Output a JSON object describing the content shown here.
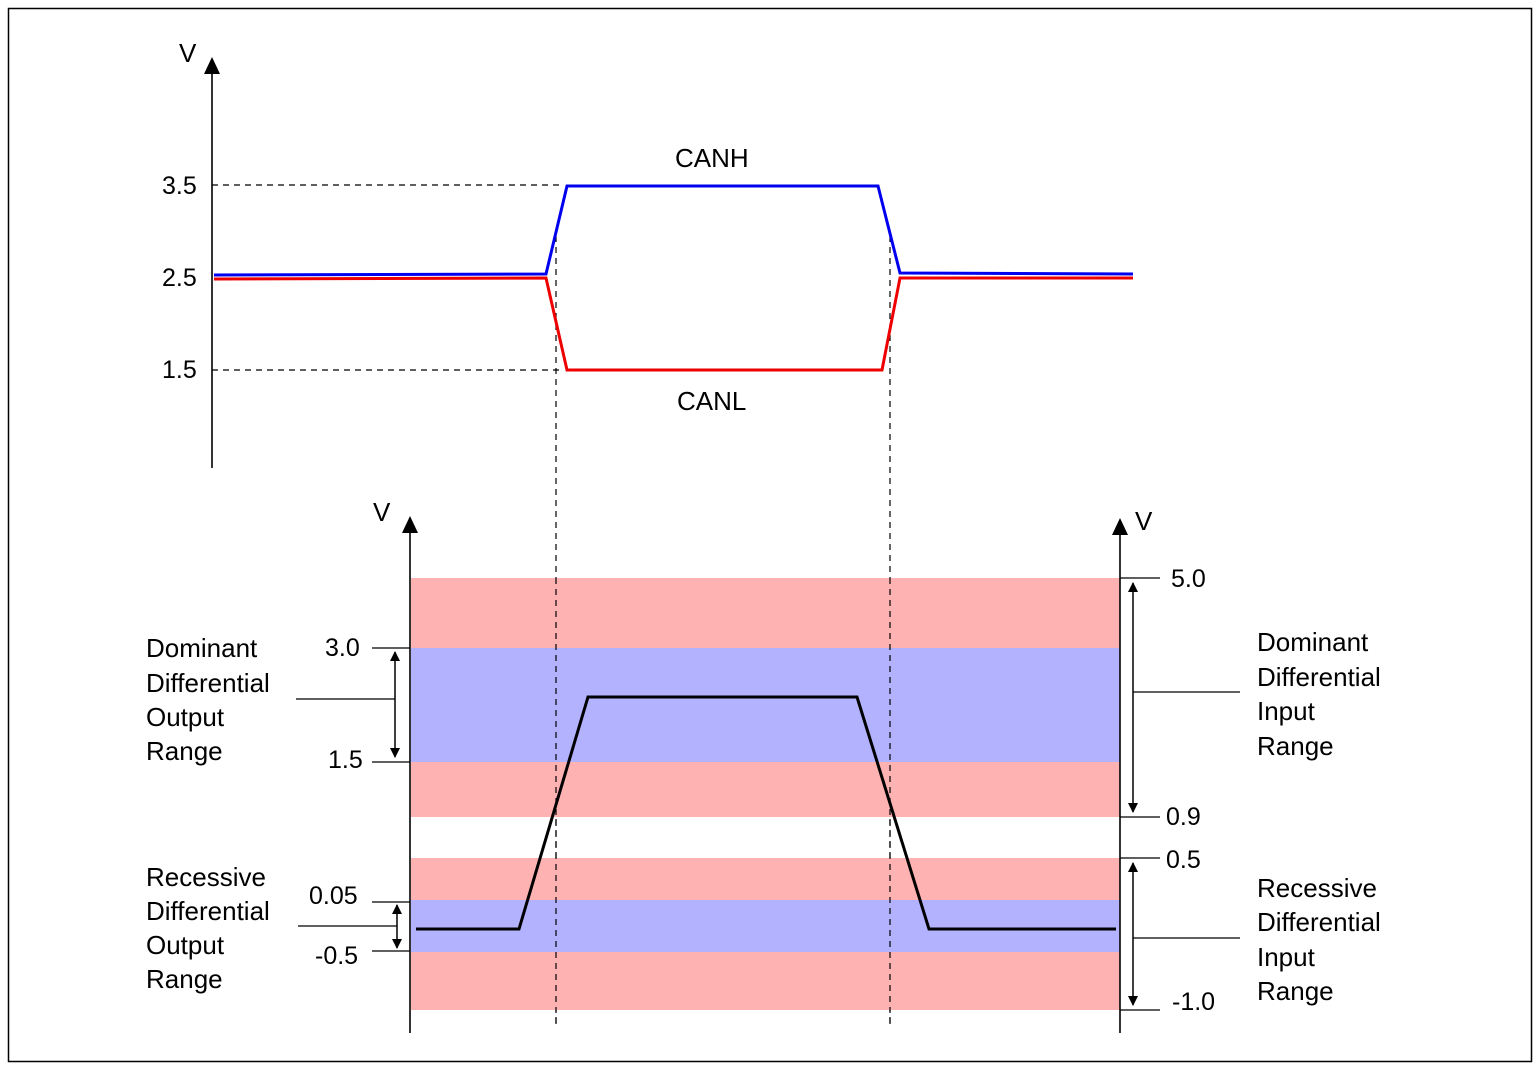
{
  "top_chart": {
    "axis_label": "V",
    "ticks": [
      "3.5",
      "2.5",
      "1.5"
    ],
    "canh_label": "CANH",
    "canl_label": "CANL",
    "colors": {
      "canh": "#0000ee",
      "canl": "#ee0000",
      "axis": "#000000"
    }
  },
  "bottom_chart": {
    "left_axis_label": "V",
    "right_axis_label": "V",
    "left_ticks": [
      "3.0",
      "1.5",
      "0.05",
      "-0.5"
    ],
    "right_ticks": [
      "5.0",
      "0.9",
      "0.5",
      "-1.0"
    ],
    "left_labels": {
      "dominant": [
        "Dominant",
        "Differential",
        "Output",
        "Range"
      ],
      "recessive": [
        "Recessive",
        "Differential",
        "Output",
        "Range"
      ]
    },
    "right_labels": {
      "dominant": [
        "Dominant",
        "Differential",
        "Input",
        "Range"
      ],
      "recessive": [
        "Recessive",
        "Differential",
        "Input",
        "Range"
      ]
    },
    "colors": {
      "input_band": "#ffb2b2",
      "output_band": "#b2b2ff",
      "signal": "#000000"
    }
  }
}
